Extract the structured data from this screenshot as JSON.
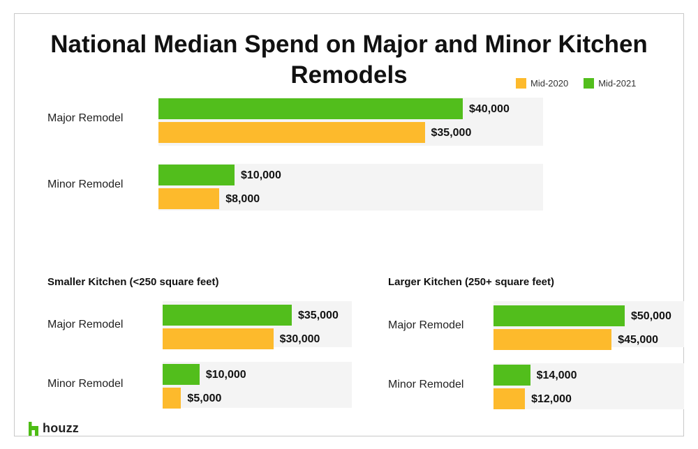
{
  "page": {
    "title_line1": "National Median Spend on Major and Minor Kitchen",
    "title_line2": "Remodels",
    "logo_text": "houzz",
    "logo_icon": "houzz-h-icon"
  },
  "colors": {
    "mid_2020": "#FDBA2C",
    "mid_2021": "#52BE1C",
    "panel_bg": "#F4F4F4",
    "logo": "#4DBC15"
  },
  "legend": [
    {
      "name": "Mid-2020",
      "color": "#FDBA2C"
    },
    {
      "name": "Mid-2021",
      "color": "#52BE1C"
    }
  ],
  "chart_data": [
    {
      "type": "bar",
      "orientation": "horizontal",
      "title": "National Median Spend on Major and Minor Kitchen Remodels",
      "subtitle": "",
      "categories": [
        "Major Remodel",
        "Minor Remodel"
      ],
      "series": [
        {
          "name": "Mid-2021",
          "values": [
            40000,
            10000
          ],
          "labels": [
            "$40,000",
            "$10,000"
          ]
        },
        {
          "name": "Mid-2020",
          "values": [
            35000,
            8000
          ],
          "labels": [
            "$35,000",
            "$8,000"
          ]
        }
      ],
      "xlim": [
        0,
        50000
      ],
      "legend_position": "top-right",
      "grid": false
    },
    {
      "type": "bar",
      "orientation": "horizontal",
      "subtitle": "Smaller Kitchen (<250 square feet)",
      "categories": [
        "Major Remodel",
        "Minor Remodel"
      ],
      "series": [
        {
          "name": "Mid-2021",
          "values": [
            35000,
            10000
          ],
          "labels": [
            "$35,000",
            "$10,000"
          ]
        },
        {
          "name": "Mid-2020",
          "values": [
            30000,
            5000
          ],
          "labels": [
            "$30,000",
            "$5,000"
          ]
        }
      ],
      "xlim": [
        0,
        50000
      ],
      "grid": false
    },
    {
      "type": "bar",
      "orientation": "horizontal",
      "subtitle": "Larger Kitchen (250+ square feet)",
      "categories": [
        "Major Remodel",
        "Minor Remodel"
      ],
      "series": [
        {
          "name": "Mid-2021",
          "values": [
            50000,
            14000
          ],
          "labels": [
            "$50,000",
            "$14,000"
          ]
        },
        {
          "name": "Mid-2020",
          "values": [
            45000,
            12000
          ],
          "labels": [
            "$45,000",
            "$12,000"
          ]
        }
      ],
      "xlim": [
        0,
        50000
      ],
      "grid": false
    }
  ]
}
